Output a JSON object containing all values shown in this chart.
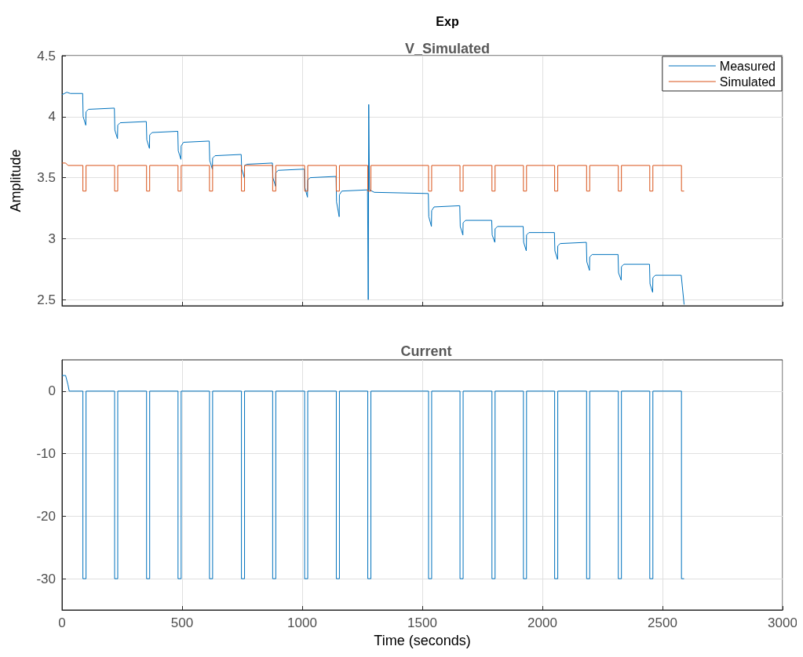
{
  "chart_data": [
    {
      "type": "line",
      "title": "Exp",
      "subtitle": "V_Simulated",
      "ylabel": "Amplitude",
      "xlim": [
        0,
        3000
      ],
      "xticks": [
        0,
        500,
        1000,
        1500,
        2000,
        2500,
        3000
      ],
      "ylim": [
        2.45,
        4.5
      ],
      "yticks": [
        2.5,
        3,
        3.5,
        4,
        4.5
      ],
      "tick_labels": "y",
      "grid": true,
      "legend": "top right",
      "series": [
        {
          "name": "Measured",
          "color": "#0072bd",
          "x": [
            0,
            10,
            20,
            35,
            86,
            87,
            88,
            99,
            100,
            110,
            218,
            219,
            220,
            231,
            232,
            242,
            351,
            352,
            353,
            364,
            365,
            375,
            482,
            483,
            484,
            495,
            496,
            506,
            613,
            614,
            615,
            626,
            627,
            637,
            746,
            747,
            748,
            759,
            760,
            770,
            876,
            877,
            878,
            889,
            890,
            900,
            1009,
            1010,
            1011,
            1022,
            1023,
            1033,
            1141,
            1142,
            1143,
            1154,
            1155,
            1165,
            1272,
            1273,
            1275,
            1277,
            1280,
            1300,
            1525,
            1526,
            1527,
            1538,
            1539,
            1549,
            1656,
            1657,
            1658,
            1669,
            1670,
            1680,
            1789,
            1790,
            1791,
            1802,
            1803,
            1813,
            1920,
            1921,
            1922,
            1933,
            1934,
            1944,
            2050,
            2051,
            2052,
            2063,
            2064,
            2074,
            2183,
            2184,
            2185,
            2196,
            2197,
            2207,
            2315,
            2316,
            2317,
            2328,
            2329,
            2339,
            2446,
            2447,
            2448,
            2459,
            2460,
            2470,
            2578,
            2579,
            2590
          ],
          "values": [
            4.18,
            4.19,
            4.2,
            4.19,
            4.19,
            4.19,
            4.0,
            3.93,
            4.04,
            4.06,
            4.07,
            4.07,
            3.89,
            3.82,
            3.93,
            3.95,
            3.96,
            3.96,
            3.81,
            3.74,
            3.85,
            3.87,
            3.88,
            3.88,
            3.72,
            3.65,
            3.76,
            3.79,
            3.8,
            3.8,
            3.64,
            3.57,
            3.66,
            3.68,
            3.69,
            3.69,
            3.57,
            3.5,
            3.6,
            3.61,
            3.62,
            3.62,
            3.5,
            3.43,
            3.54,
            3.56,
            3.57,
            3.57,
            3.42,
            3.34,
            3.48,
            3.5,
            3.51,
            3.51,
            3.3,
            3.18,
            3.36,
            3.39,
            3.4,
            3.4,
            2.5,
            4.1,
            3.4,
            3.38,
            3.37,
            3.37,
            3.18,
            3.1,
            3.23,
            3.26,
            3.27,
            3.27,
            3.1,
            3.03,
            3.13,
            3.15,
            3.15,
            3.15,
            3.03,
            2.97,
            3.08,
            3.1,
            3.1,
            3.1,
            2.97,
            2.9,
            3.03,
            3.05,
            3.05,
            3.05,
            2.9,
            2.83,
            2.94,
            2.96,
            2.97,
            2.97,
            2.81,
            2.74,
            2.85,
            2.87,
            2.87,
            2.87,
            2.72,
            2.66,
            2.77,
            2.79,
            2.79,
            2.79,
            2.63,
            2.56,
            2.68,
            2.7,
            2.7,
            2.7,
            2.46
          ]
        },
        {
          "name": "Simulated",
          "color": "#d95319",
          "x": [
            0,
            15,
            25,
            87,
            87,
            100,
            100,
            219,
            219,
            232,
            232,
            352,
            352,
            365,
            365,
            483,
            483,
            496,
            496,
            614,
            614,
            627,
            627,
            747,
            747,
            760,
            760,
            877,
            877,
            890,
            890,
            1010,
            1010,
            1023,
            1023,
            1142,
            1142,
            1155,
            1155,
            1273,
            1273,
            1286,
            1286,
            1526,
            1526,
            1539,
            1539,
            1657,
            1657,
            1670,
            1670,
            1790,
            1790,
            1803,
            1803,
            1921,
            1921,
            1934,
            1934,
            2051,
            2051,
            2064,
            2064,
            2184,
            2184,
            2197,
            2197,
            2316,
            2316,
            2329,
            2329,
            2447,
            2447,
            2460,
            2460,
            2579,
            2579,
            2590
          ],
          "values": [
            3.62,
            3.62,
            3.6,
            3.6,
            3.39,
            3.39,
            3.6,
            3.6,
            3.39,
            3.39,
            3.6,
            3.6,
            3.39,
            3.39,
            3.6,
            3.6,
            3.39,
            3.39,
            3.6,
            3.6,
            3.39,
            3.39,
            3.6,
            3.6,
            3.39,
            3.39,
            3.6,
            3.6,
            3.39,
            3.39,
            3.6,
            3.6,
            3.39,
            3.39,
            3.6,
            3.6,
            3.39,
            3.39,
            3.6,
            3.6,
            3.39,
            3.39,
            3.6,
            3.6,
            3.39,
            3.39,
            3.6,
            3.6,
            3.39,
            3.39,
            3.6,
            3.6,
            3.39,
            3.39,
            3.6,
            3.6,
            3.39,
            3.39,
            3.6,
            3.6,
            3.39,
            3.39,
            3.6,
            3.6,
            3.39,
            3.39,
            3.6,
            3.6,
            3.39,
            3.39,
            3.6,
            3.6,
            3.39,
            3.39,
            3.6,
            3.6,
            3.39,
            3.39
          ]
        }
      ]
    },
    {
      "type": "line",
      "title": "Current",
      "xlabel": "Time (seconds)",
      "xlim": [
        0,
        3000
      ],
      "xticks": [
        0,
        500,
        1000,
        1500,
        2000,
        2500,
        3000
      ],
      "ylim": [
        -35,
        5
      ],
      "yticks": [
        -30,
        -20,
        -10,
        0
      ],
      "grid": true,
      "series": [
        {
          "color": "#0072bd",
          "x": [
            0,
            15,
            25,
            30,
            87,
            87,
            100,
            100,
            219,
            219,
            232,
            232,
            352,
            352,
            365,
            365,
            483,
            483,
            496,
            496,
            614,
            614,
            627,
            627,
            747,
            747,
            760,
            760,
            877,
            877,
            890,
            890,
            1010,
            1010,
            1023,
            1023,
            1142,
            1142,
            1155,
            1155,
            1273,
            1273,
            1286,
            1286,
            1526,
            1526,
            1539,
            1539,
            1657,
            1657,
            1670,
            1670,
            1790,
            1790,
            1803,
            1803,
            1921,
            1921,
            1934,
            1934,
            2051,
            2051,
            2064,
            2064,
            2184,
            2184,
            2197,
            2197,
            2316,
            2316,
            2329,
            2329,
            2447,
            2447,
            2460,
            2460,
            2579,
            2579,
            2590
          ],
          "values": [
            2.5,
            2.5,
            1,
            0,
            0,
            -30,
            -30,
            0,
            0,
            -30,
            -30,
            0,
            0,
            -30,
            -30,
            0,
            0,
            -30,
            -30,
            0,
            0,
            -30,
            -30,
            0,
            0,
            -30,
            -30,
            0,
            0,
            -30,
            -30,
            0,
            0,
            -30,
            -30,
            0,
            0,
            -30,
            -30,
            0,
            0,
            -30,
            -30,
            0,
            0,
            -30,
            -30,
            0,
            0,
            -30,
            -30,
            0,
            0,
            -30,
            -30,
            0,
            0,
            -30,
            -30,
            0,
            0,
            -30,
            -30,
            0,
            0,
            -30,
            -30,
            0,
            0,
            -30,
            -30,
            0,
            0,
            -30,
            -30,
            0,
            0,
            -30,
            -30
          ]
        }
      ]
    }
  ]
}
